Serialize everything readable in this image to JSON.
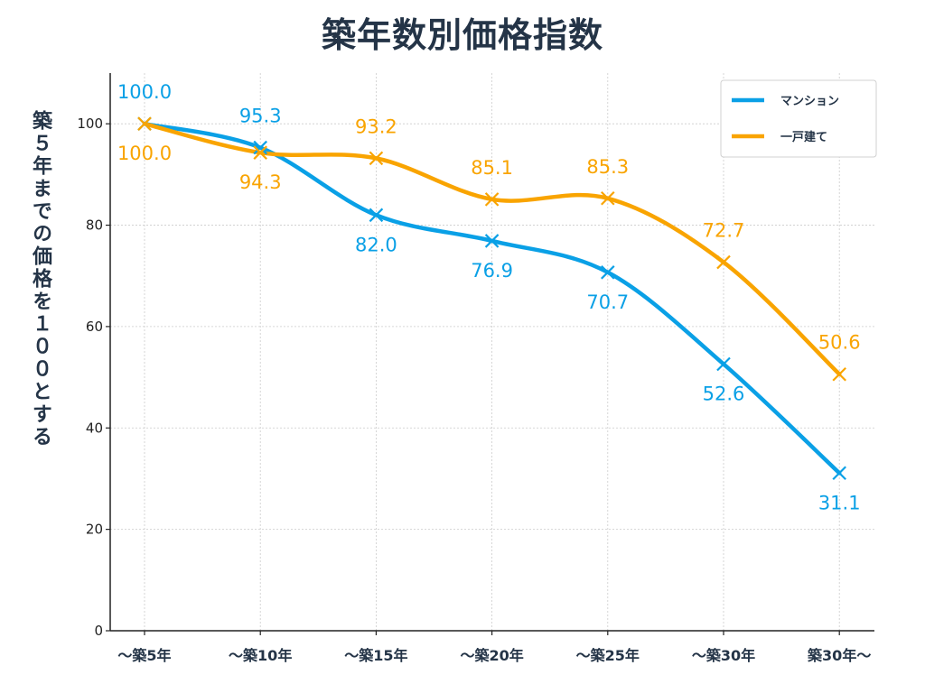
{
  "chart_data": {
    "type": "line",
    "title": "築年数別価格指数",
    "ylabel": "築５年までの価格を１００とする",
    "xlabel": "",
    "categories": [
      "〜築5年",
      "〜築10年",
      "〜築15年",
      "〜築20年",
      "〜築25年",
      "〜築30年",
      "築30年〜"
    ],
    "ylim": [
      0,
      110
    ],
    "yticks": [
      0,
      20,
      40,
      60,
      80,
      100
    ],
    "grid": true,
    "legend_position": "top-right",
    "series": [
      {
        "name": "マンション",
        "color": "#0aa0e6",
        "values": [
          100.0,
          95.3,
          82.0,
          76.9,
          70.7,
          52.6,
          31.1
        ],
        "labels": [
          "100.0",
          "95.3",
          "82.0",
          "76.9",
          "70.7",
          "52.6",
          "31.1"
        ],
        "label_side": [
          "above",
          "above",
          "below",
          "below",
          "below",
          "below",
          "below"
        ]
      },
      {
        "name": "一戸建て",
        "color": "#f9a400",
        "values": [
          100.0,
          94.3,
          93.2,
          85.1,
          85.3,
          72.7,
          50.6
        ],
        "labels": [
          "100.0",
          "94.3",
          "93.2",
          "85.1",
          "85.3",
          "72.7",
          "50.6"
        ],
        "label_side": [
          "below",
          "below",
          "above",
          "above",
          "above",
          "above",
          "above"
        ]
      }
    ]
  }
}
